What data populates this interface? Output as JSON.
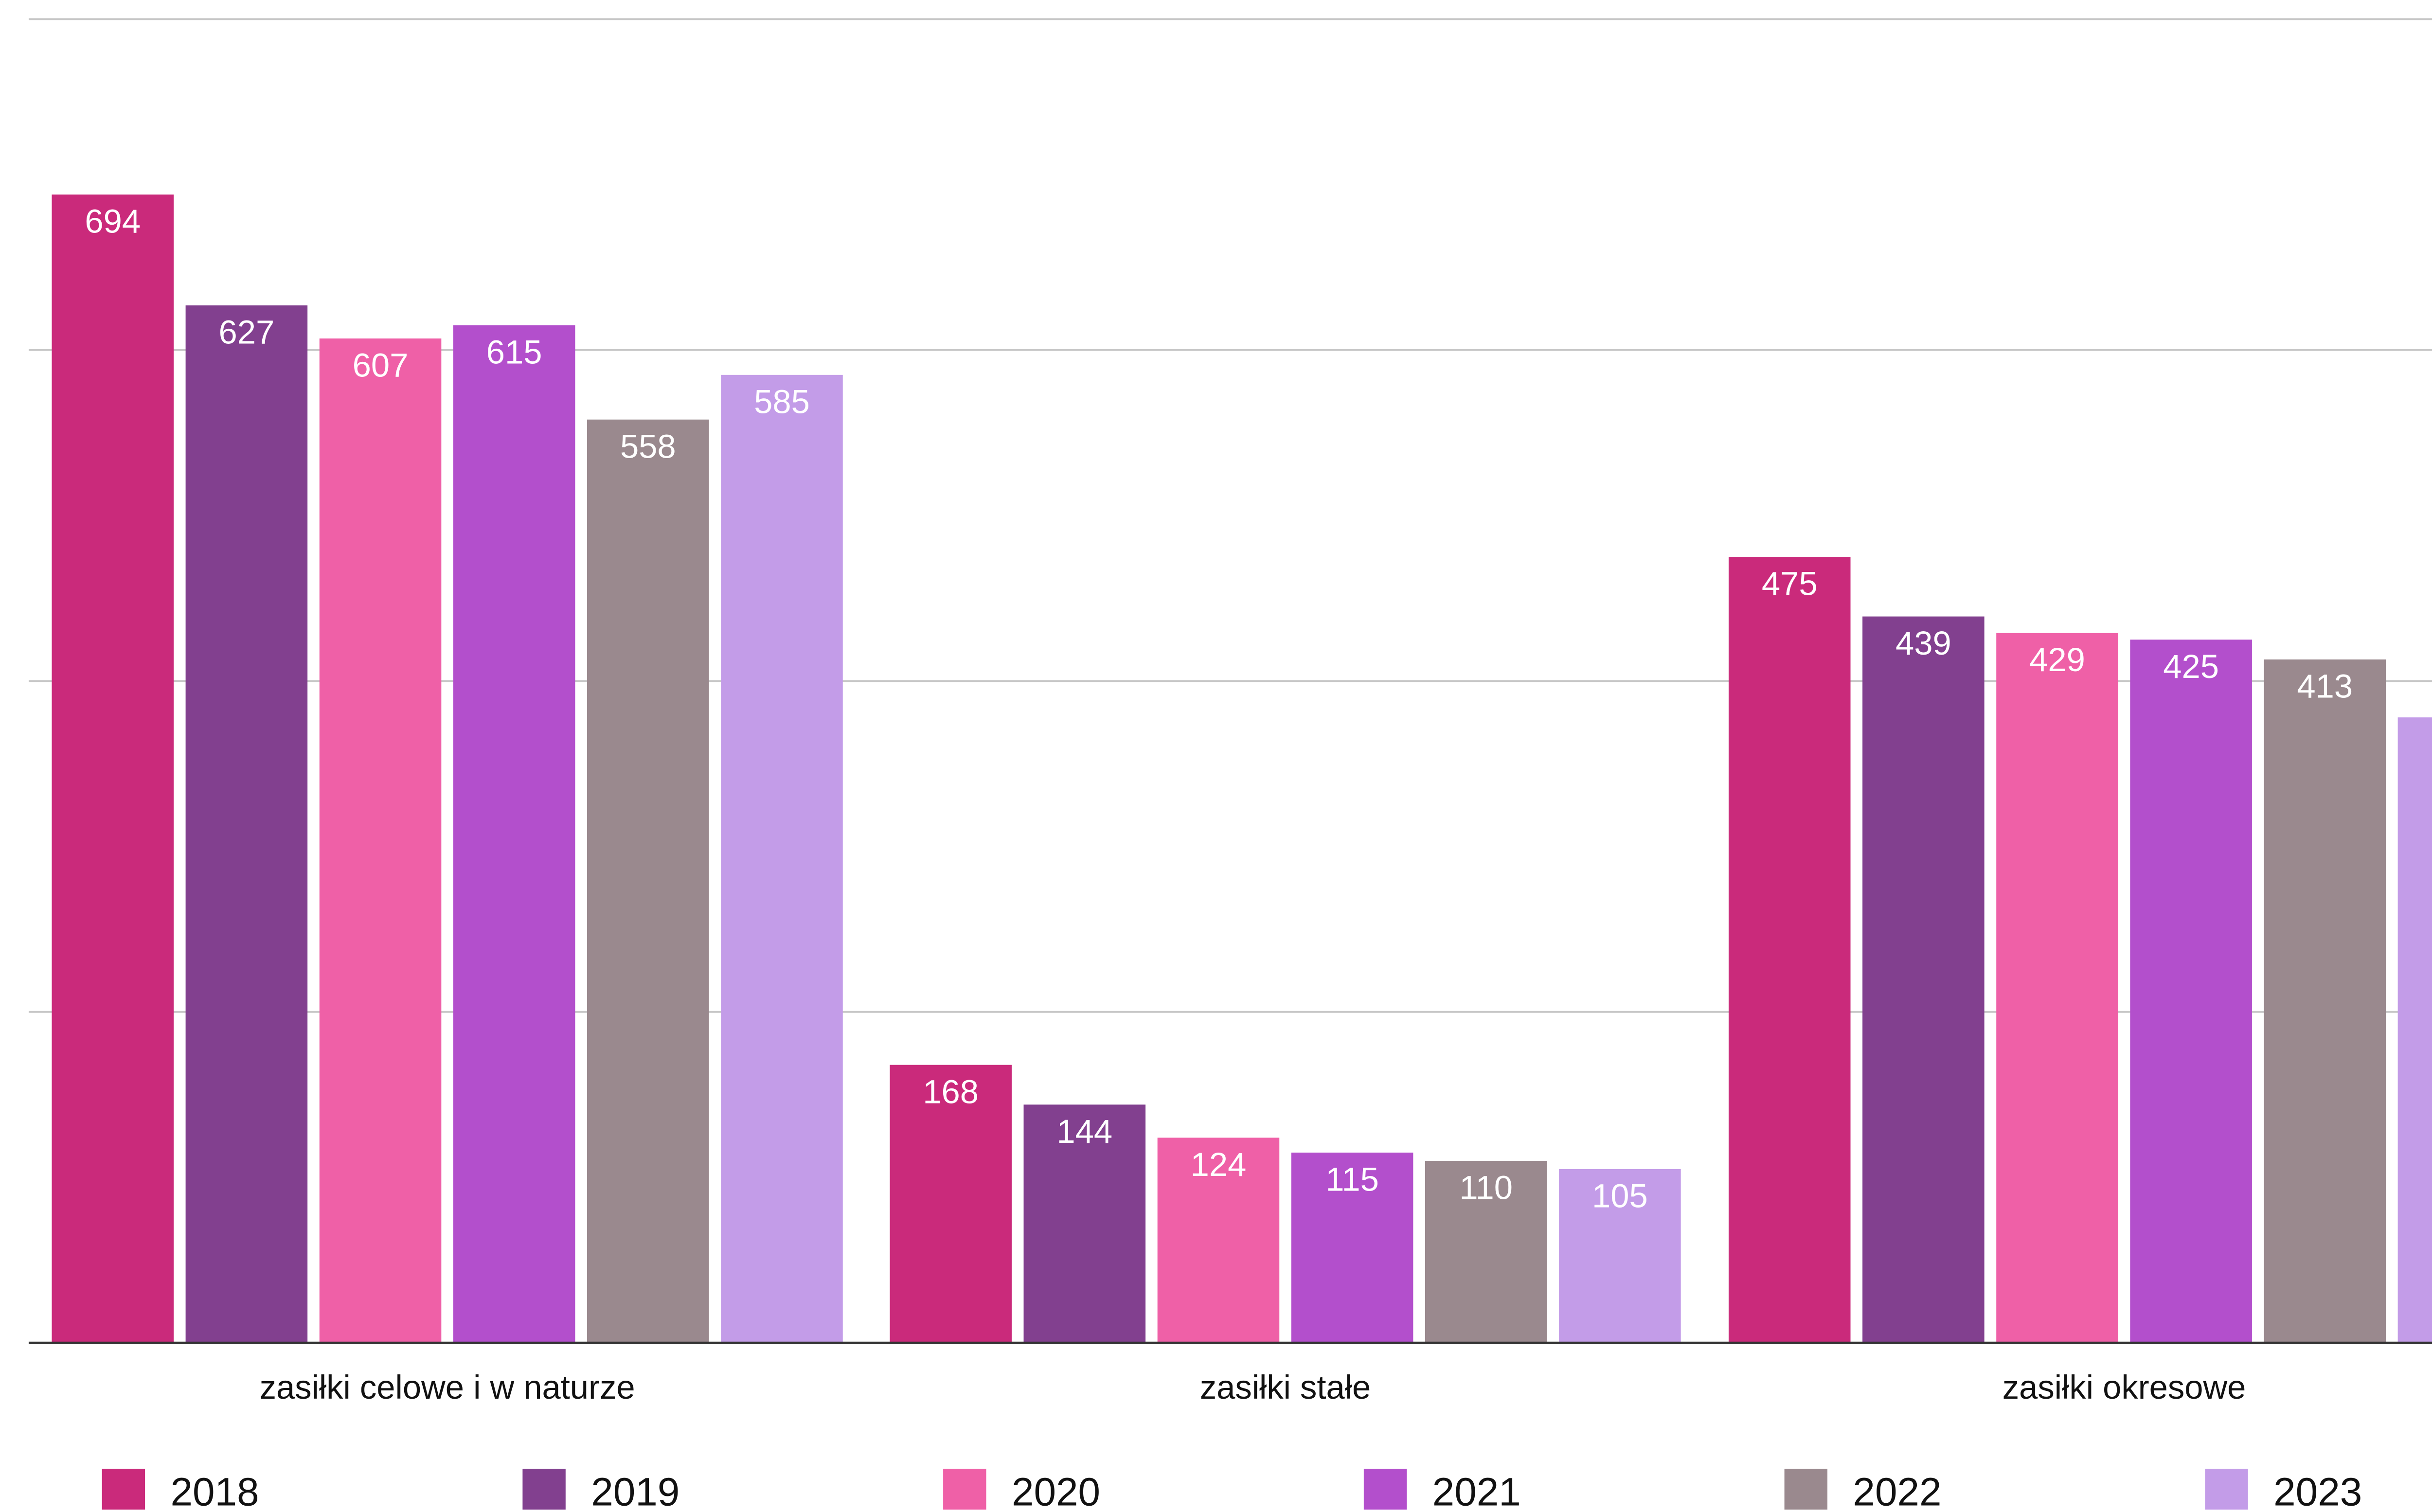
{
  "chart_data": {
    "type": "bar",
    "title": "",
    "xlabel": "",
    "ylabel": "",
    "ylim": [
      0,
      800
    ],
    "grid": true,
    "gridlines": [
      200,
      400,
      600,
      800
    ],
    "legend_placement": "bottom",
    "categories": [
      "zasiłki celowe i w naturze",
      "zasiłki stałe",
      "zasiłki okresowe"
    ],
    "series": [
      {
        "name": "2018",
        "color": "#CA2A7B",
        "values": [
          694,
          168,
          475
        ]
      },
      {
        "name": "2019",
        "color": "#82408F",
        "values": [
          627,
          144,
          439
        ]
      },
      {
        "name": "2020",
        "color": "#EF60A7",
        "values": [
          607,
          124,
          429
        ]
      },
      {
        "name": "2021",
        "color": "#B34FCC",
        "values": [
          615,
          115,
          425
        ]
      },
      {
        "name": "2022",
        "color": "#9A898E",
        "values": [
          558,
          110,
          413
        ]
      },
      {
        "name": "2023",
        "color": "#C39CE8",
        "values": [
          585,
          105,
          378
        ]
      }
    ],
    "colors": {
      "gridline": "#C8C8C8",
      "baseline": "#333333",
      "data_label": "#FFFFFF",
      "category_label": "#111111",
      "legend_label": "#111111"
    }
  }
}
